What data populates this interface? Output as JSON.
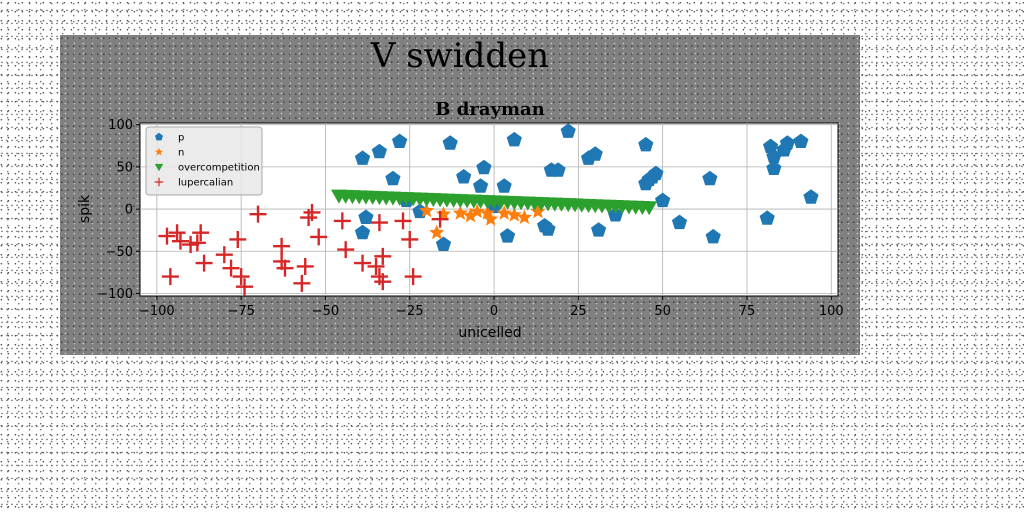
{
  "suptitle": "V swidden",
  "chart_data": {
    "type": "scatter",
    "title": "B drayman",
    "xlabel": "unicelled",
    "ylabel": "spik",
    "xlim": [
      -105,
      102
    ],
    "ylim": [
      -103,
      102
    ],
    "xticks": [
      -100,
      -75,
      -50,
      -25,
      0,
      25,
      50,
      75,
      100
    ],
    "yticks": [
      -100,
      -50,
      0,
      50,
      100
    ],
    "xtick_labels": [
      "−100",
      "−75",
      "−50",
      "−25",
      "0",
      "25",
      "50",
      "75",
      "100"
    ],
    "ytick_labels": [
      "−100",
      "−50",
      "0",
      "50",
      "100"
    ],
    "grid": true,
    "legend_position": "upper-left",
    "series": [
      {
        "name": "p",
        "marker": "pentagon",
        "color": "#1f77b4",
        "points": [
          [
            -39,
            60
          ],
          [
            -34,
            68
          ],
          [
            -28,
            80
          ],
          [
            -30,
            36
          ],
          [
            -26,
            10
          ],
          [
            -38,
            -10
          ],
          [
            -39,
            -28
          ],
          [
            -22,
            -3
          ],
          [
            -15,
            -42
          ],
          [
            -13,
            78
          ],
          [
            -9,
            38
          ],
          [
            -4,
            27
          ],
          [
            -3,
            49
          ],
          [
            3,
            27
          ],
          [
            0,
            3
          ],
          [
            4,
            -32
          ],
          [
            6,
            82
          ],
          [
            15,
            -20
          ],
          [
            16,
            -24
          ],
          [
            17,
            46
          ],
          [
            19,
            46
          ],
          [
            22,
            92
          ],
          [
            28,
            60
          ],
          [
            30,
            65
          ],
          [
            31,
            -25
          ],
          [
            36,
            -7
          ],
          [
            45,
            76
          ],
          [
            45,
            30
          ],
          [
            46,
            35
          ],
          [
            47,
            38
          ],
          [
            48,
            42
          ],
          [
            50,
            10
          ],
          [
            55,
            -16
          ],
          [
            64,
            36
          ],
          [
            65,
            -33
          ],
          [
            81,
            -11
          ],
          [
            82,
            74
          ],
          [
            83,
            62
          ],
          [
            83,
            48
          ],
          [
            86,
            70
          ],
          [
            87,
            78
          ],
          [
            91,
            80
          ],
          [
            94,
            14
          ]
        ]
      },
      {
        "name": "n",
        "marker": "star",
        "color": "#ff7f0e",
        "points": [
          [
            -20,
            -2
          ],
          [
            -17,
            -28
          ],
          [
            -15,
            -6
          ],
          [
            -10,
            -5
          ],
          [
            -7,
            -8
          ],
          [
            -5,
            -3
          ],
          [
            -2,
            -5
          ],
          [
            -1,
            -12
          ],
          [
            3,
            -5
          ],
          [
            6,
            -7
          ],
          [
            9,
            -10
          ],
          [
            13,
            -3
          ]
        ]
      },
      {
        "name": "overcompetition",
        "marker": "triangle-down",
        "color": "#2ca02c",
        "points": [
          [
            -46,
            16
          ],
          [
            -44,
            15.7
          ],
          [
            -42,
            15.4
          ],
          [
            -40,
            15.1
          ],
          [
            -38,
            14.8
          ],
          [
            -36,
            14.5
          ],
          [
            -34,
            14.2
          ],
          [
            -32,
            13.9
          ],
          [
            -30,
            13.6
          ],
          [
            -28,
            13.3
          ],
          [
            -26,
            13.0
          ],
          [
            -24,
            12.7
          ],
          [
            -22,
            12.4
          ],
          [
            -20,
            12.1
          ],
          [
            -18,
            11.8
          ],
          [
            -16,
            11.5
          ],
          [
            -14,
            11.2
          ],
          [
            -12,
            10.9
          ],
          [
            -10,
            10.6
          ],
          [
            -8,
            10.3
          ],
          [
            -6,
            10.0
          ],
          [
            -4,
            9.7
          ],
          [
            -2,
            9.4
          ],
          [
            0,
            9.1
          ],
          [
            2,
            8.8
          ],
          [
            4,
            8.5
          ],
          [
            6,
            8.2
          ],
          [
            8,
            7.9
          ],
          [
            10,
            7.6
          ],
          [
            12,
            7.3
          ],
          [
            14,
            7.0
          ],
          [
            16,
            6.7
          ],
          [
            18,
            6.4
          ],
          [
            20,
            6.1
          ],
          [
            22,
            5.8
          ],
          [
            24,
            5.5
          ],
          [
            26,
            5.2
          ],
          [
            28,
            4.9
          ],
          [
            30,
            4.6
          ],
          [
            32,
            4.3
          ],
          [
            34,
            4.0
          ],
          [
            36,
            3.7
          ],
          [
            38,
            3.4
          ],
          [
            40,
            3.1
          ],
          [
            42,
            2.8
          ],
          [
            44,
            2.5
          ],
          [
            46,
            2.2
          ]
        ]
      },
      {
        "name": "lupercalian",
        "marker": "plus",
        "color": "#d62728",
        "points": [
          [
            -97,
            -32
          ],
          [
            -96,
            -80
          ],
          [
            -94,
            -28
          ],
          [
            -93,
            -38
          ],
          [
            -90,
            -42
          ],
          [
            -88,
            -40
          ],
          [
            -87,
            -28
          ],
          [
            -86,
            -64
          ],
          [
            -80,
            -54
          ],
          [
            -78,
            -70
          ],
          [
            -76,
            -36
          ],
          [
            -75,
            -80
          ],
          [
            -74,
            -92
          ],
          [
            -70,
            -6
          ],
          [
            -63,
            -44
          ],
          [
            -63,
            -62
          ],
          [
            -62,
            -70
          ],
          [
            -57,
            -88
          ],
          [
            -56,
            -68
          ],
          [
            -55,
            -10
          ],
          [
            -54,
            -4
          ],
          [
            -52,
            -33
          ],
          [
            -45,
            -14
          ],
          [
            -44,
            -48
          ],
          [
            -39,
            -64
          ],
          [
            -35,
            -68
          ],
          [
            -34,
            -16
          ],
          [
            -34,
            -80
          ],
          [
            -33,
            -56
          ],
          [
            -33,
            -86
          ],
          [
            -27,
            -14
          ],
          [
            -25,
            -36
          ],
          [
            -24,
            -80
          ],
          [
            -16,
            -12
          ]
        ]
      }
    ]
  }
}
